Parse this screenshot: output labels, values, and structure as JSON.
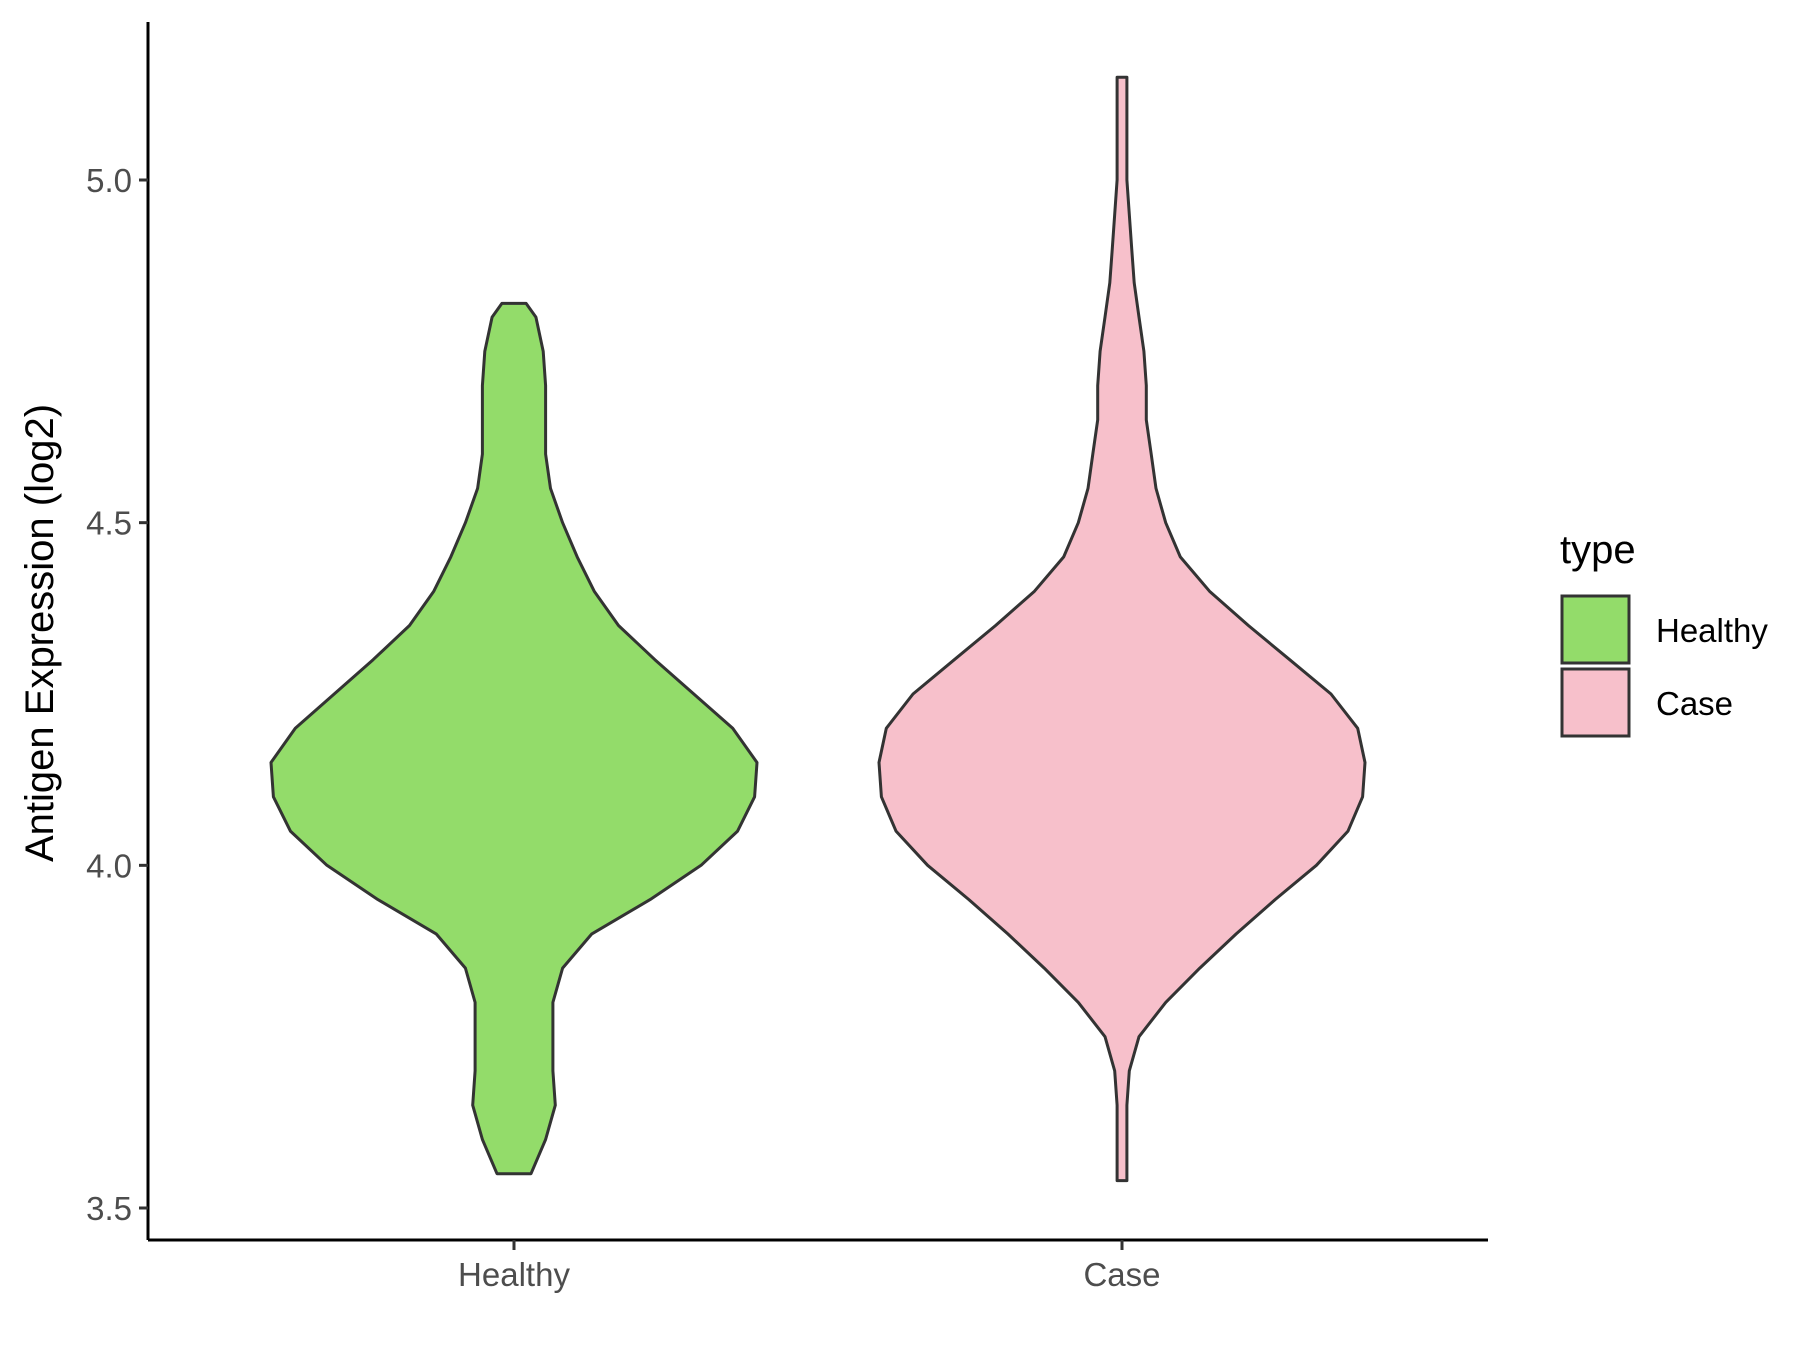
{
  "chart_data": {
    "type": "violin",
    "ylabel": "Antigen Expression (log2)",
    "xlabel": "",
    "ylim": [
      3.47,
      5.23
    ],
    "yticks": [
      3.5,
      4.0,
      4.5,
      5.0
    ],
    "ytick_labels": [
      "3.5",
      "4.0",
      "4.5",
      "5.0"
    ],
    "categories": [
      "Healthy",
      "Case"
    ],
    "legend": {
      "title": "type",
      "position": "right",
      "entries": [
        {
          "label": "Healthy",
          "color": "#93dc6a"
        },
        {
          "label": "Case",
          "color": "#f7c0cb"
        }
      ]
    },
    "series": [
      {
        "category": "Healthy",
        "color": "#93dc6a",
        "min": 3.55,
        "max": 4.82,
        "density": [
          [
            3.55,
            0.07
          ],
          [
            3.6,
            0.13
          ],
          [
            3.65,
            0.17
          ],
          [
            3.7,
            0.16
          ],
          [
            3.75,
            0.16
          ],
          [
            3.8,
            0.16
          ],
          [
            3.85,
            0.2
          ],
          [
            3.9,
            0.32
          ],
          [
            3.95,
            0.56
          ],
          [
            4.0,
            0.77
          ],
          [
            4.05,
            0.92
          ],
          [
            4.1,
            0.99
          ],
          [
            4.15,
            1.0
          ],
          [
            4.2,
            0.9
          ],
          [
            4.25,
            0.74
          ],
          [
            4.3,
            0.58
          ],
          [
            4.35,
            0.43
          ],
          [
            4.4,
            0.33
          ],
          [
            4.45,
            0.26
          ],
          [
            4.5,
            0.2
          ],
          [
            4.55,
            0.15
          ],
          [
            4.6,
            0.13
          ],
          [
            4.65,
            0.13
          ],
          [
            4.7,
            0.13
          ],
          [
            4.75,
            0.12
          ],
          [
            4.8,
            0.09
          ],
          [
            4.82,
            0.05
          ]
        ]
      },
      {
        "category": "Case",
        "color": "#f7c0cb",
        "min": 3.54,
        "max": 5.15,
        "density": [
          [
            3.54,
            0.02
          ],
          [
            3.6,
            0.02
          ],
          [
            3.65,
            0.02
          ],
          [
            3.7,
            0.03
          ],
          [
            3.75,
            0.07
          ],
          [
            3.8,
            0.18
          ],
          [
            3.85,
            0.32
          ],
          [
            3.9,
            0.47
          ],
          [
            3.95,
            0.63
          ],
          [
            4.0,
            0.8
          ],
          [
            4.05,
            0.93
          ],
          [
            4.1,
            0.99
          ],
          [
            4.15,
            1.0
          ],
          [
            4.2,
            0.97
          ],
          [
            4.25,
            0.86
          ],
          [
            4.3,
            0.69
          ],
          [
            4.35,
            0.52
          ],
          [
            4.4,
            0.36
          ],
          [
            4.45,
            0.24
          ],
          [
            4.5,
            0.18
          ],
          [
            4.55,
            0.14
          ],
          [
            4.6,
            0.12
          ],
          [
            4.65,
            0.1
          ],
          [
            4.7,
            0.1
          ],
          [
            4.75,
            0.09
          ],
          [
            4.8,
            0.07
          ],
          [
            4.85,
            0.05
          ],
          [
            4.9,
            0.04
          ],
          [
            4.95,
            0.03
          ],
          [
            5.0,
            0.02
          ],
          [
            5.05,
            0.02
          ],
          [
            5.1,
            0.02
          ],
          [
            5.15,
            0.02
          ]
        ]
      }
    ]
  }
}
